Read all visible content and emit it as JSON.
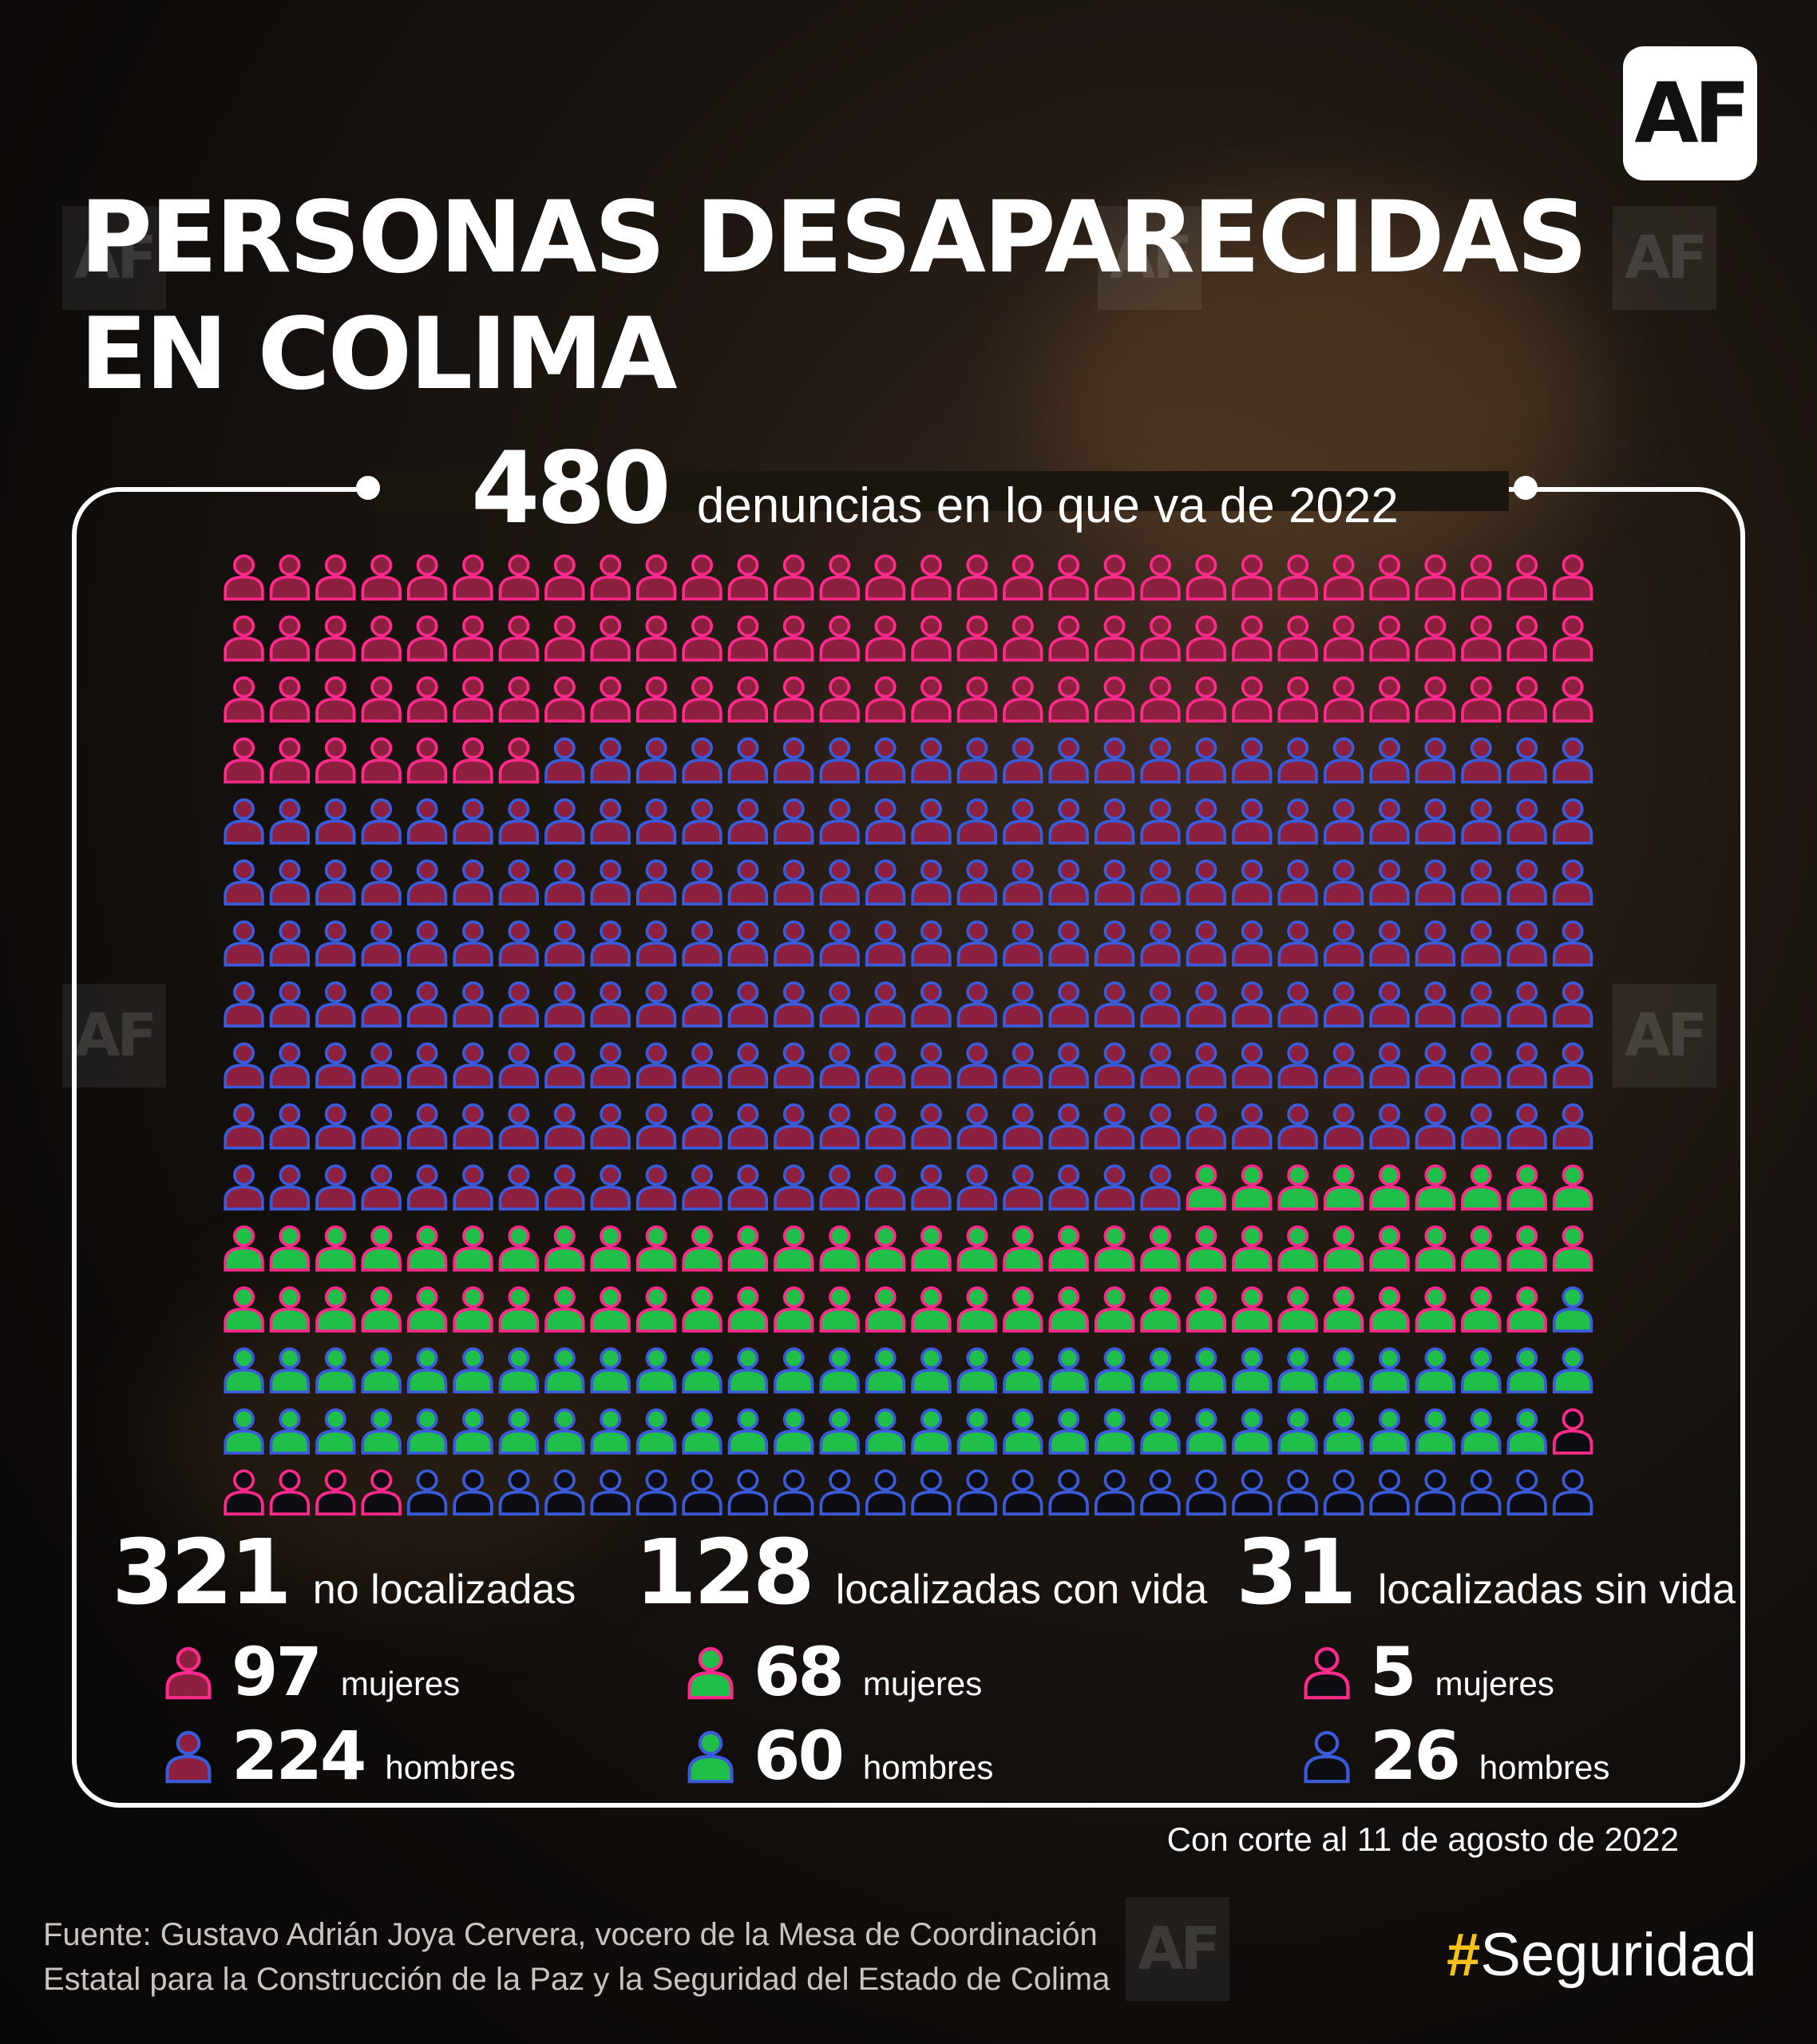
{
  "logo": "AF",
  "watermark": "AF",
  "title": {
    "line1": "PERSONAS DESAPARECIDAS",
    "line2": "EN COLIMA"
  },
  "total": {
    "number": "480",
    "label": "denuncias en lo que va de 2022"
  },
  "colors": {
    "no_localizadas_fill": "#8d1f3f",
    "localizadas_con_vida_fill": "#1fbf4a",
    "localizadas_sin_vida_fill": "#0e0d14",
    "mujeres_outline": "#ff2a8a",
    "hombres_outline": "#3b5bd9",
    "hashtag_accent": "#f4c21a"
  },
  "icon_grid": {
    "per_row": 30,
    "rows": 16,
    "sequence": [
      {
        "group": "no_localizadas",
        "sex": "mujeres",
        "count": 97
      },
      {
        "group": "no_localizadas",
        "sex": "hombres",
        "count": 224
      },
      {
        "group": "localizadas_con_vida",
        "sex": "mujeres",
        "count": 68
      },
      {
        "group": "localizadas_con_vida",
        "sex": "hombres",
        "count": 60
      },
      {
        "group": "localizadas_sin_vida",
        "sex": "mujeres",
        "count": 5
      },
      {
        "group": "localizadas_sin_vida",
        "sex": "hombres",
        "count": 26
      }
    ]
  },
  "stats": [
    {
      "key": "no_localizadas",
      "number": "321",
      "label": "no localizadas",
      "mujeres": {
        "number": "97",
        "label": "mujeres"
      },
      "hombres": {
        "number": "224",
        "label": "hombres"
      }
    },
    {
      "key": "localizadas_con_vida",
      "number": "128",
      "label": "localizadas con vida",
      "mujeres": {
        "number": "68",
        "label": "mujeres"
      },
      "hombres": {
        "number": "60",
        "label": "hombres"
      }
    },
    {
      "key": "localizadas_sin_vida",
      "number": "31",
      "label": "localizadas sin vida",
      "mujeres": {
        "number": "5",
        "label": "mujeres"
      },
      "hombres": {
        "number": "26",
        "label": "hombres"
      }
    }
  ],
  "cutoff": "Con corte al 11 de agosto de 2022",
  "source": {
    "line1": "Fuente: Gustavo Adrián Joya Cervera, vocero de la Mesa de Coordinación",
    "line2": "Estatal para la Construcción de la Paz y la Seguridad del Estado de Colima"
  },
  "hashtag": {
    "symbol": "#",
    "word": "Seguridad"
  }
}
